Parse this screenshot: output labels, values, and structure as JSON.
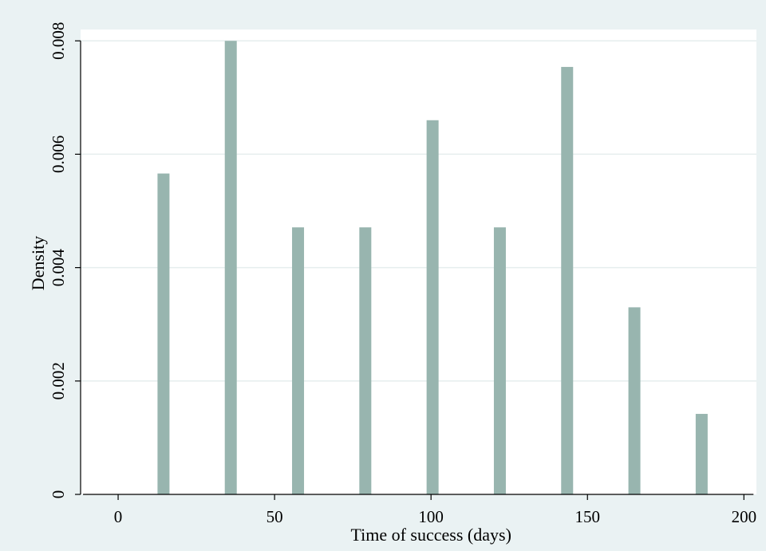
{
  "chart_data": {
    "type": "bar",
    "xlabel": "Time of success (days)",
    "ylabel": "Density",
    "xlim": [
      -12,
      204
    ],
    "ylim": [
      0,
      0.0082
    ],
    "x_ticks": [
      0,
      50,
      100,
      150,
      200
    ],
    "x_tick_labels": [
      "0",
      "50",
      "100",
      "150",
      "200"
    ],
    "y_ticks": [
      0,
      0.002,
      0.004,
      0.006,
      0.008
    ],
    "y_tick_labels": [
      "0",
      "0.002",
      "0.004",
      "0.006",
      "0.008"
    ],
    "grid": true,
    "legend": "none",
    "colors": {
      "outer_background": "#eaf2f3",
      "plot_background": "#ffffff",
      "bar": "#98b5af",
      "grid": "#e6eeee",
      "axis": "#000000"
    },
    "x": [
      14.5,
      36,
      57.5,
      79,
      100.5,
      122,
      143.5,
      165,
      186.5
    ],
    "values": [
      0.00566,
      0.008,
      0.00471,
      0.00471,
      0.0066,
      0.00471,
      0.00754,
      0.0033,
      0.00142
    ]
  }
}
